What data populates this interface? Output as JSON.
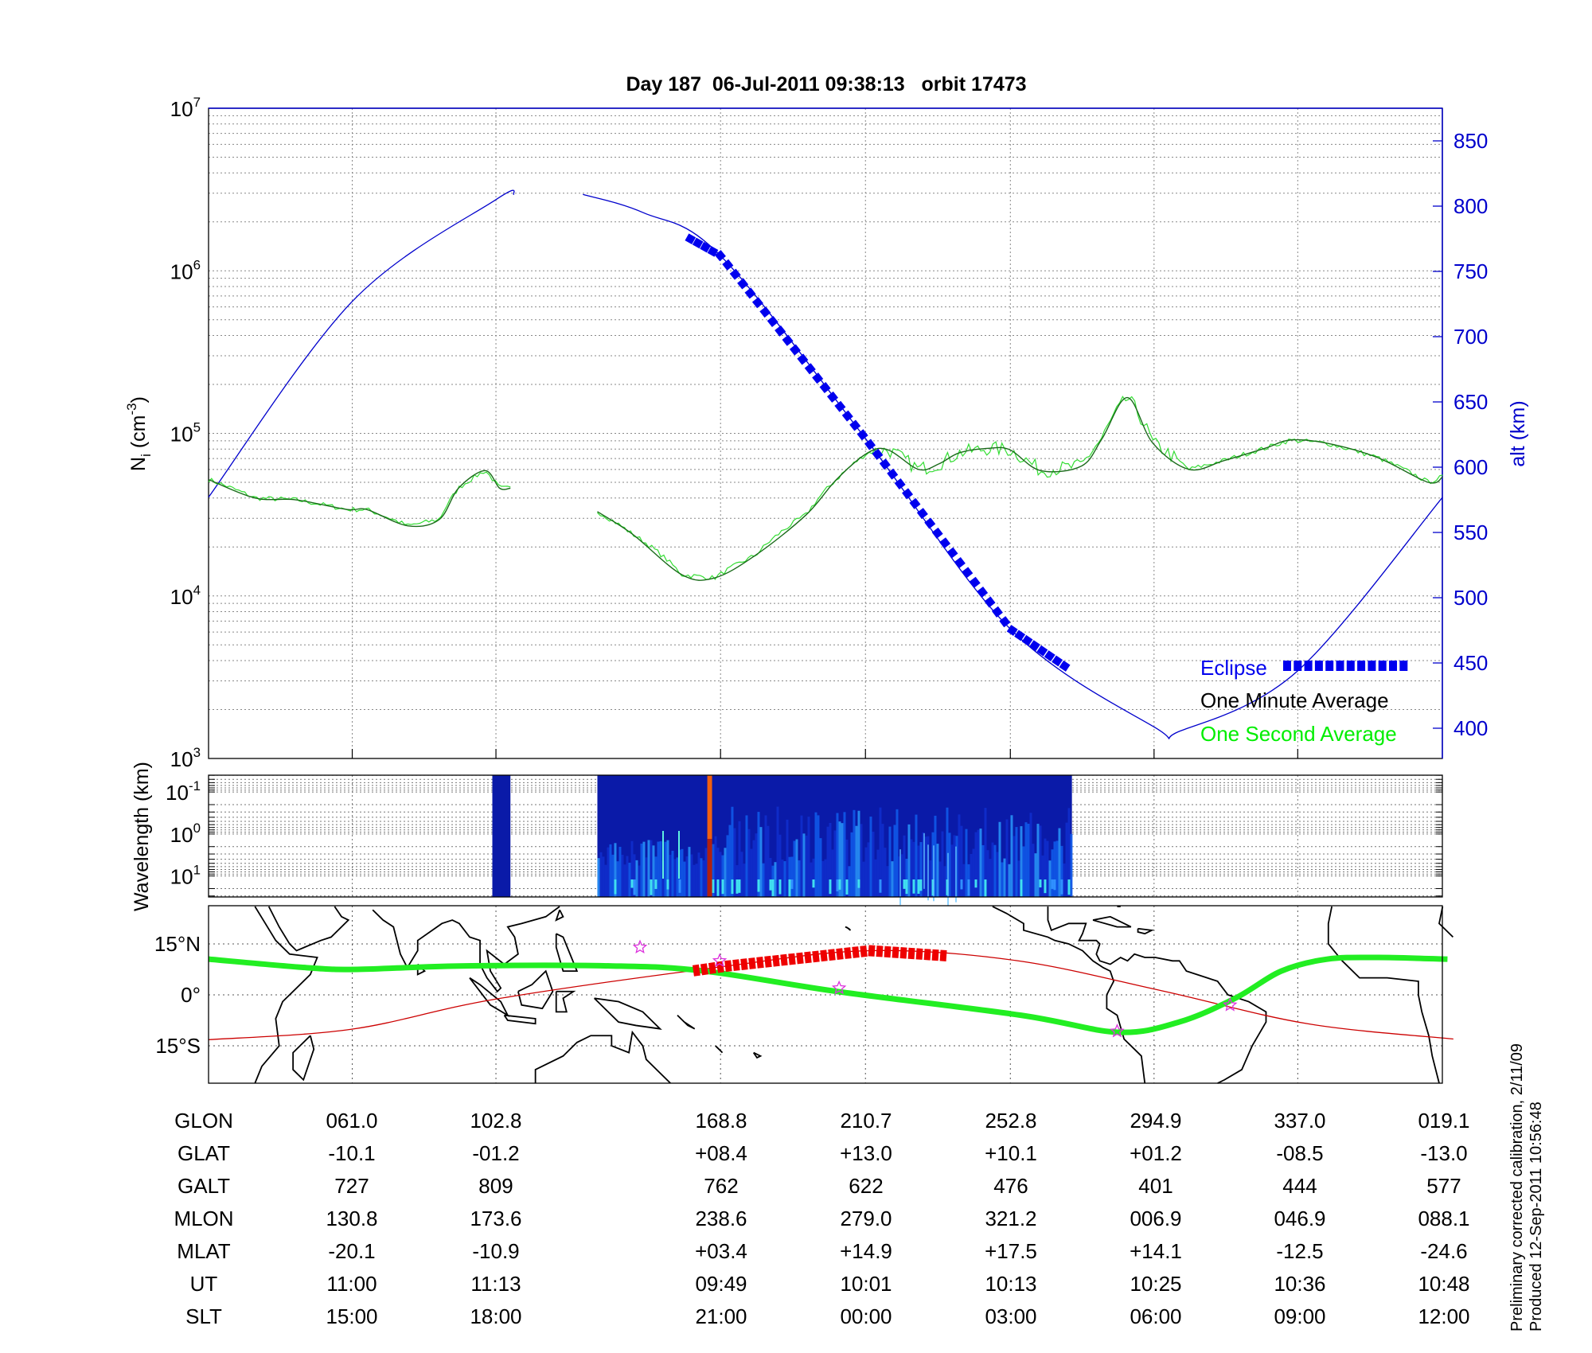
{
  "chart_data": [
    {
      "type": "line",
      "title": "Day 187  06-Jul-2011 09:38:13   orbit 17473",
      "xaxis_unit": "elapsed minutes from left edge of plot",
      "xlim": [
        0,
        102.2
      ],
      "ylabel": {
        "main": "N",
        "sub": "i",
        "unit_open": " (cm",
        "unit_exp": "-3",
        "unit_close": ")"
      },
      "ylim_log10": [
        3,
        7
      ],
      "yticks": [
        {
          "base": "10",
          "exp": "3",
          "value": 3
        },
        {
          "base": "10",
          "exp": "4",
          "value": 4
        },
        {
          "base": "10",
          "exp": "5",
          "value": 5
        },
        {
          "base": "10",
          "exp": "6",
          "value": 6
        },
        {
          "base": "10",
          "exp": "7",
          "value": 7
        }
      ],
      "y2label": "alt (km)",
      "y2lim": [
        375,
        875
      ],
      "y2ticks": [
        "400",
        "450",
        "500",
        "550",
        "600",
        "650",
        "700",
        "750",
        "800",
        "850"
      ],
      "vgrid_minutes": [
        11.9,
        23.8,
        42.4,
        54.4,
        66.4,
        78.3,
        90.2
      ],
      "grid": true,
      "legend_position": "bottom-right",
      "legend": [
        {
          "label": "Eclipse",
          "color": "#0000ee"
        },
        {
          "label": "One Minute Average",
          "color": "#000000"
        },
        {
          "label": "One Second Average",
          "color": "#00ee00"
        }
      ],
      "series": [
        {
          "name": "One Minute Average",
          "color": "#1a6b1a",
          "segments": [
            {
              "x": [
                0,
                3.86,
                7.24,
                11.5,
                13.1,
                16.5,
                19.1,
                20.7,
                22.9,
                24.1,
                25.0
              ],
              "y": [
                52000,
                40000,
                39000,
                34000,
                34000,
                27000,
                29500,
                46000,
                59000,
                46000,
                46000
              ]
            },
            {
              "x": [
                32.2,
                35.1,
                39.2,
                41.9,
                45.3,
                49.5,
                52.0,
                54.6,
                56.3,
                58.8,
                60.5,
                62.2,
                64.7,
                66.4,
                68.9,
                72.3,
                74.0,
                76.1,
                78.2,
                81.2,
                84.1,
                87.5,
                89.6,
                92.6,
                96.8,
                101.0,
                102.2
              ],
              "y": [
                33000,
                24000,
                13500,
                12900,
                17800,
                31600,
                52000,
                76000,
                79000,
                60000,
                65000,
                76000,
                81000,
                79000,
                59000,
                63000,
                93000,
                166000,
                87000,
                60000,
                68000,
                81000,
                91000,
                87000,
                71000,
                50000,
                54000
              ]
            }
          ]
        },
        {
          "name": "One Second Average",
          "color": "#33dd33",
          "derived_from": "One Minute Average"
        },
        {
          "name": "Altitude",
          "color": "#0000cc",
          "axis": "right",
          "segments": [
            {
              "x": [
                0,
                11.9,
                23.8,
                25.3
              ],
              "y": [
                577,
                727,
                805,
                809
              ]
            },
            {
              "x": [
                31.0,
                36,
                42.4,
                54.4,
                66.4,
                78.3,
                80.5,
                90.2,
                102.2
              ],
              "y": [
                809,
                795,
                762,
                622,
                476,
                401,
                398,
                444,
                577
              ]
            }
          ]
        },
        {
          "name": "Eclipse",
          "color": "#0000ee",
          "x_range": [
            39.9,
            71.4
          ],
          "on": "Altitude"
        }
      ]
    },
    {
      "type": "heatmap",
      "ylabel": "Wavelength (km)",
      "yticks": [
        {
          "base": "10",
          "exp": "-1",
          "value": -1
        },
        {
          "base": "10",
          "exp": "0",
          "value": 0
        },
        {
          "base": "10",
          "exp": "1",
          "value": 1
        }
      ],
      "ylim_log10": [
        -1.4,
        1.5
      ],
      "data_blocks_minutes": [
        [
          23.5,
          25.0
        ],
        [
          32.2,
          71.5
        ]
      ],
      "saturated_column_minute": 41.5,
      "colormap": [
        "#00008f",
        "#0000ff",
        "#0080ff",
        "#00ffff",
        "#ffff00",
        "#ff8000",
        "#800000"
      ]
    },
    {
      "type": "map",
      "yticks": [
        {
          "label": "15°N",
          "lat": 15
        },
        {
          "label": "0°",
          "lat": 0
        },
        {
          "label": "15°S",
          "lat": -15
        }
      ],
      "lon_range": [
        19.6,
        379.1
      ],
      "lat_range": [
        -26,
        26
      ],
      "orbit_track": {
        "color": "#cc0000",
        "lon": [
          19.6,
          61.0,
          102.8,
          168.8,
          210.7,
          252.8,
          294.9,
          337.0,
          379.1
        ],
        "lat": [
          -13.2,
          -10.1,
          -1.2,
          8.4,
          13.0,
          10.1,
          1.2,
          -8.5,
          -13.0
        ]
      },
      "eclipse_track_lon": [
        160.5,
        233.0
      ],
      "magnetic_equator": {
        "color": "#22ee22",
        "lon": [
          19.6,
          47.9,
          62.6,
          92.1,
          136.3,
          162.8,
          201.1,
          254.2,
          282.2,
          299.9,
          316.1,
          329.4,
          342.6,
          357.4,
          377.4
        ],
        "lat": [
          10.5,
          8,
          7.5,
          8.5,
          8.5,
          7,
          1,
          -6,
          -11,
          -8,
          -1,
          7,
          10.5,
          11,
          10.5
        ]
      },
      "stars": {
        "color": "#dd33dd",
        "lon": [
          144.2,
          167.2,
          201.7,
          282.0,
          314.6
        ],
        "lat": [
          14,
          10,
          2,
          -10.7,
          -3
        ]
      }
    }
  ],
  "table": {
    "rows": [
      {
        "label": "GLON",
        "values": [
          "061.0",
          "102.8",
          "168.8",
          "210.7",
          "252.8",
          "294.9",
          "337.0",
          "019.1"
        ]
      },
      {
        "label": "GLAT",
        "values": [
          "-10.1",
          "-01.2",
          "+08.4",
          "+13.0",
          "+10.1",
          "+01.2",
          "-08.5",
          "-13.0"
        ]
      },
      {
        "label": "GALT",
        "values": [
          "727",
          "809",
          "762",
          "622",
          "476",
          "401",
          "444",
          "577"
        ]
      },
      {
        "label": "MLON",
        "values": [
          "130.8",
          "173.6",
          "238.6",
          "279.0",
          "321.2",
          "006.9",
          "046.9",
          "088.1"
        ]
      },
      {
        "label": "MLAT",
        "values": [
          "-20.1",
          "-10.9",
          "+03.4",
          "+14.9",
          "+17.5",
          "+14.1",
          "-12.5",
          "-24.6"
        ]
      },
      {
        "label": "UT",
        "values": [
          "11:00",
          "11:13",
          "09:49",
          "10:01",
          "10:13",
          "10:25",
          "10:36",
          "10:48"
        ]
      },
      {
        "label": "SLT",
        "values": [
          "15:00",
          "18:00",
          "21:00",
          "00:00",
          "03:00",
          "06:00",
          "09:00",
          "12:00"
        ]
      }
    ]
  },
  "footer": {
    "line1": "Preliminary corrected calibration, 2/11/09",
    "line2": "Produced 12-Sep-2011 10:56:48"
  }
}
